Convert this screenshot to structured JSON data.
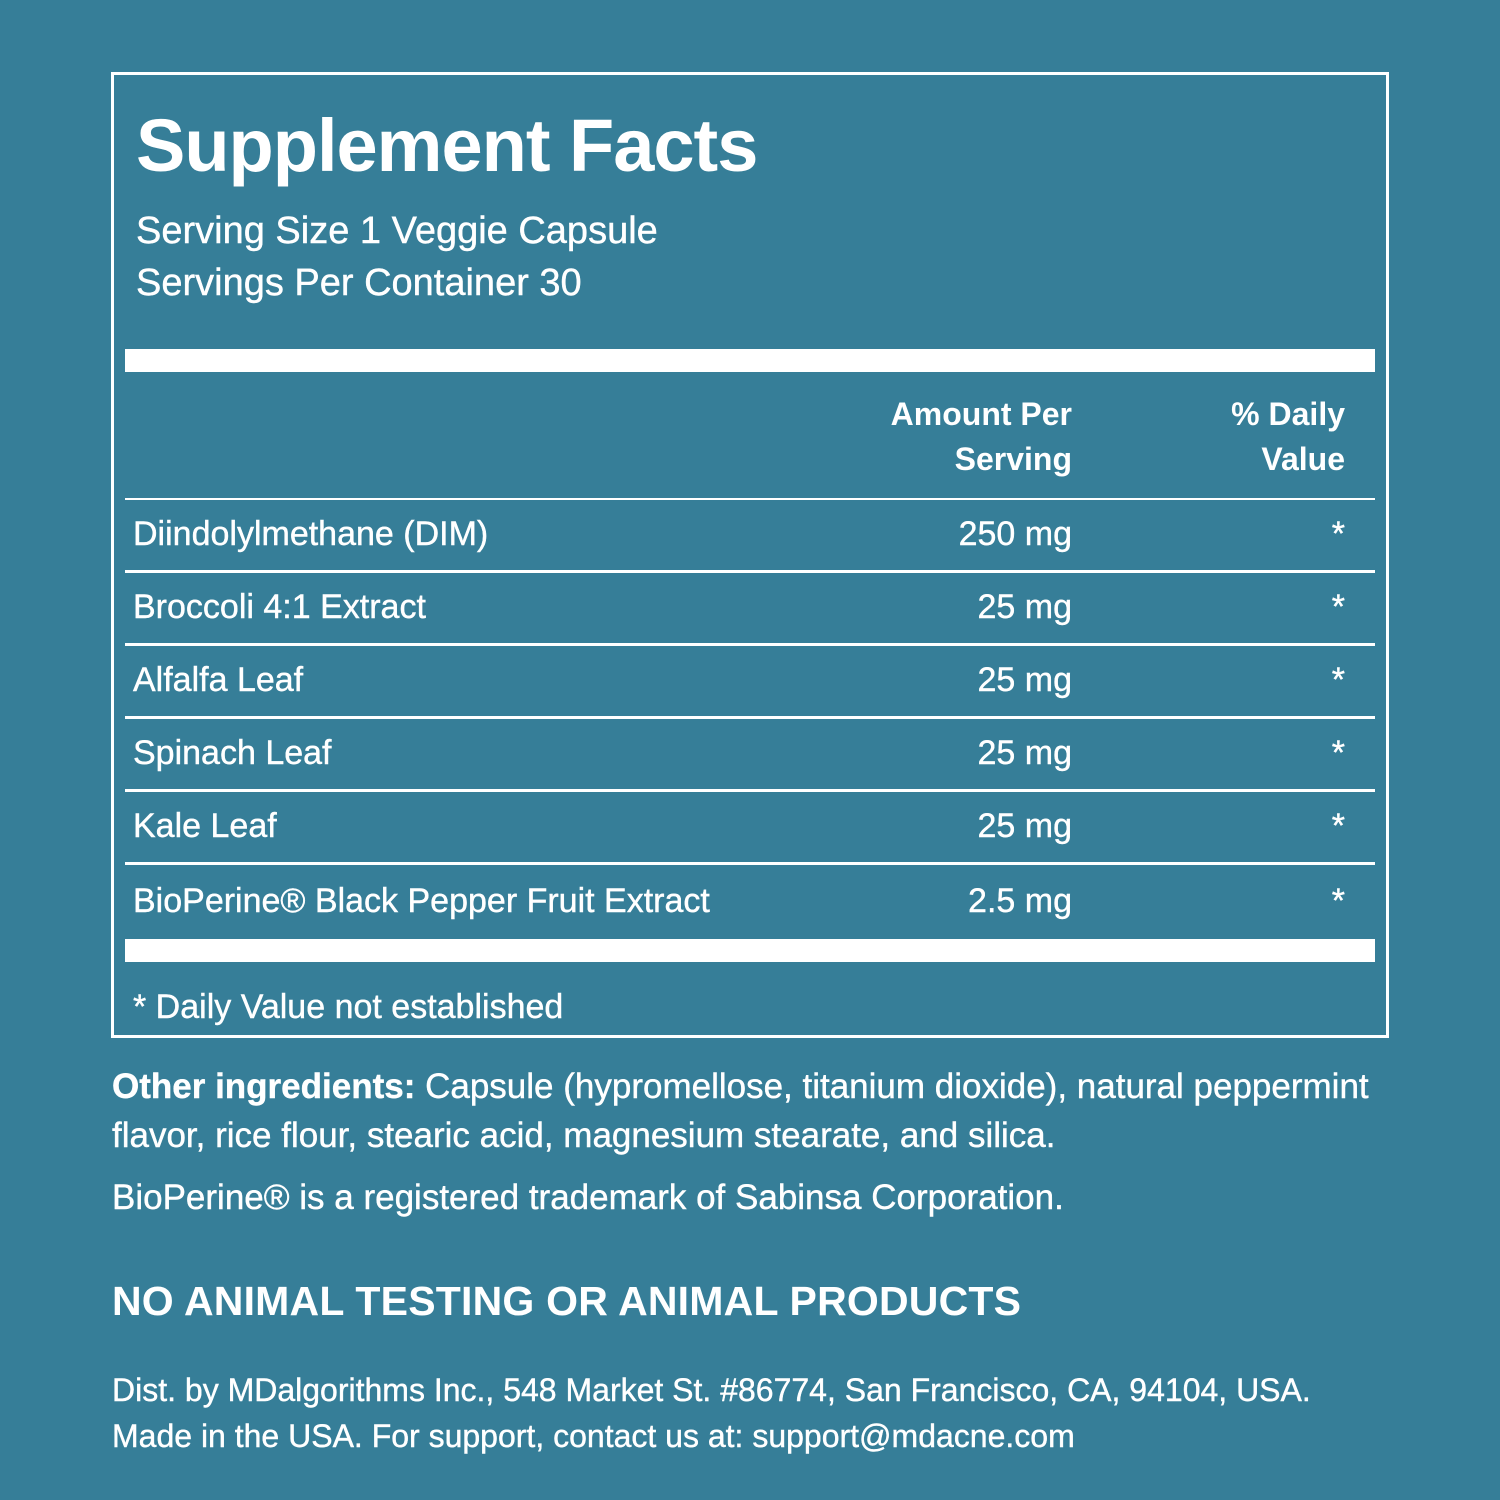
{
  "colors": {
    "background": "#367E98",
    "text": "#FFFFFF"
  },
  "panel": {
    "title": "Supplement Facts",
    "serving_size": "Serving Size 1 Veggie Capsule",
    "servings_per_container": "Servings Per Container 30",
    "columns": {
      "amount_line1": "Amount Per",
      "amount_line2": "Serving",
      "dv_line1": "% Daily",
      "dv_line2": "Value"
    },
    "rows": [
      {
        "name": "Diindolylmethane (DIM)",
        "amount": "250 mg",
        "dv": "*"
      },
      {
        "name": "Broccoli 4:1 Extract",
        "amount": "25 mg",
        "dv": "*"
      },
      {
        "name": "Alfalfa Leaf",
        "amount": "25 mg",
        "dv": "*"
      },
      {
        "name": "Spinach Leaf",
        "amount": "25 mg",
        "dv": "*"
      },
      {
        "name": "Kale Leaf",
        "amount": "25 mg",
        "dv": "*"
      },
      {
        "name": "BioPerine® Black Pepper Fruit Extract",
        "amount": "2.5 mg",
        "dv": "*"
      }
    ],
    "footnote": "* Daily Value not established"
  },
  "other_ingredients": {
    "label": "Other ingredients:",
    "text": " Capsule (hypromellose, titanium dioxide), natural peppermint flavor, rice flour, stearic acid, magnesium stearate, and silica.",
    "trademark": "BioPerine® is a registered trademark of Sabinsa Corporation."
  },
  "claims": {
    "no_animal": "NO ANIMAL TESTING OR ANIMAL PRODUCTS"
  },
  "distributor": {
    "line1": "Dist. by MDalgorithms Inc., 548 Market St. #86774, San Francisco, CA, 94104, USA.",
    "line2": "Made in the USA. For support, contact us at: support@mdacne.com"
  }
}
